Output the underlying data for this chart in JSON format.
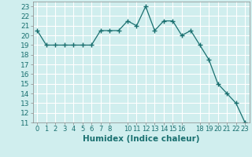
{
  "x": [
    0,
    1,
    2,
    3,
    4,
    5,
    6,
    7,
    8,
    9,
    10,
    11,
    12,
    13,
    14,
    15,
    16,
    17,
    18,
    19,
    20,
    21,
    22,
    23
  ],
  "y": [
    20.5,
    19.0,
    19.0,
    19.0,
    19.0,
    19.0,
    19.0,
    20.5,
    20.5,
    20.5,
    21.5,
    21.0,
    23.0,
    20.5,
    21.5,
    21.5,
    20.0,
    20.5,
    19.0,
    17.5,
    15.0,
    14.0,
    13.0,
    11.0
  ],
  "line_color": "#1a7070",
  "bg_color": "#d0eeee",
  "grid_color": "#ffffff",
  "xlabel": "Humidex (Indice chaleur)",
  "xlim": [
    -0.5,
    23.5
  ],
  "ylim": [
    11,
    23.5
  ],
  "yticks": [
    11,
    12,
    13,
    14,
    15,
    16,
    17,
    18,
    19,
    20,
    21,
    22,
    23
  ],
  "tick_fontsize": 6.5,
  "label_fontsize": 7.5
}
